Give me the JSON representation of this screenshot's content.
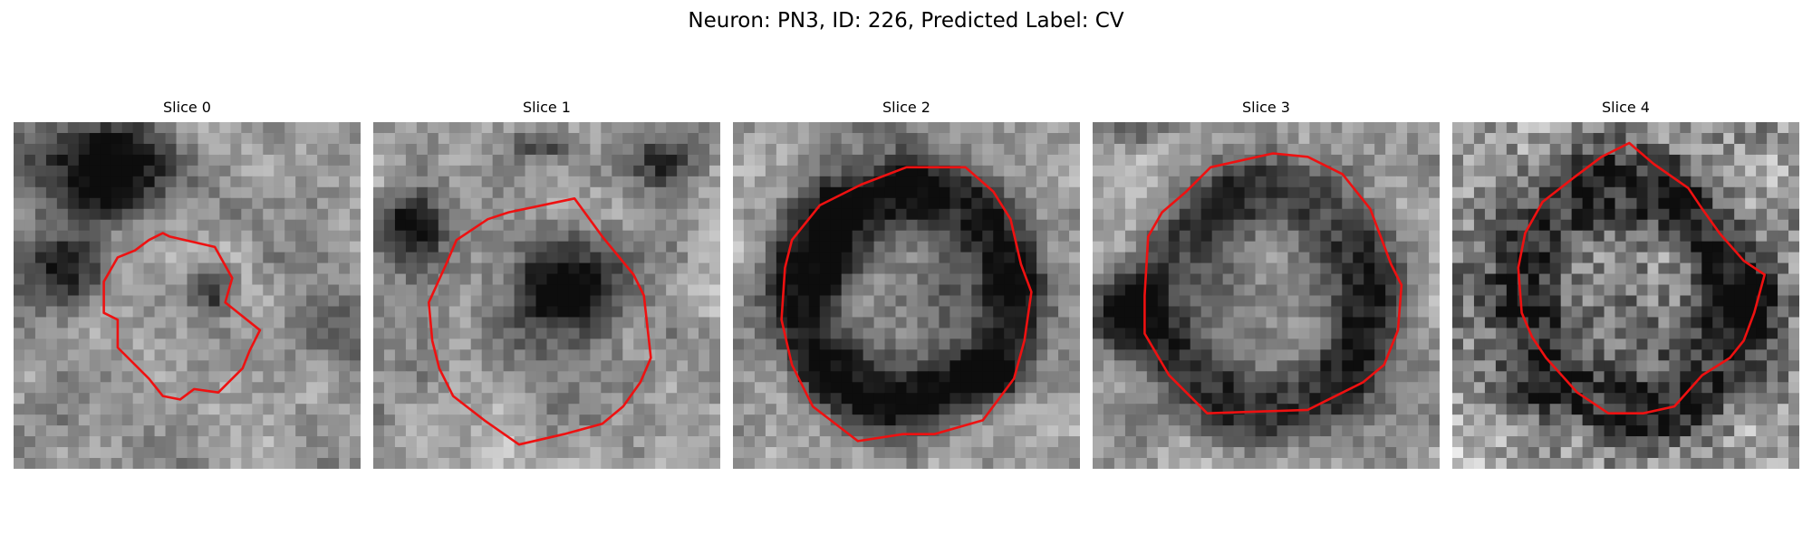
{
  "title": "Neuron: PN3, ID: 226, Predicted Label: CV",
  "slices": [
    {
      "label": "Slice 0",
      "seed": 11,
      "dark": [
        [
          0.25,
          0.13,
          0.22,
          0.14,
          0.7
        ],
        [
          0.15,
          0.42,
          0.12,
          0.1,
          0.55
        ],
        [
          0.58,
          0.48,
          0.06,
          0.08,
          0.5
        ],
        [
          0.9,
          0.55,
          0.12,
          0.15,
          0.3
        ]
      ],
      "outline": [
        [
          0.45,
          0.33
        ],
        [
          0.58,
          0.36
        ],
        [
          0.63,
          0.45
        ],
        [
          0.61,
          0.52
        ],
        [
          0.71,
          0.6
        ],
        [
          0.68,
          0.66
        ],
        [
          0.66,
          0.71
        ],
        [
          0.59,
          0.78
        ],
        [
          0.52,
          0.77
        ],
        [
          0.48,
          0.8
        ],
        [
          0.43,
          0.79
        ],
        [
          0.39,
          0.74
        ],
        [
          0.3,
          0.65
        ],
        [
          0.3,
          0.57
        ],
        [
          0.26,
          0.55
        ],
        [
          0.26,
          0.46
        ],
        [
          0.3,
          0.39
        ],
        [
          0.35,
          0.37
        ],
        [
          0.39,
          0.34
        ],
        [
          0.43,
          0.32
        ]
      ]
    },
    {
      "label": "Slice 1",
      "seed": 23,
      "dark": [
        [
          0.55,
          0.48,
          0.19,
          0.17,
          0.65
        ],
        [
          0.1,
          0.3,
          0.1,
          0.1,
          0.5
        ],
        [
          0.85,
          0.1,
          0.1,
          0.09,
          0.4
        ],
        [
          0.5,
          0.05,
          0.1,
          0.05,
          0.4
        ]
      ],
      "outline": [
        [
          0.39,
          0.26
        ],
        [
          0.58,
          0.22
        ],
        [
          0.66,
          0.33
        ],
        [
          0.75,
          0.44
        ],
        [
          0.78,
          0.5
        ],
        [
          0.8,
          0.68
        ],
        [
          0.77,
          0.75
        ],
        [
          0.72,
          0.82
        ],
        [
          0.66,
          0.87
        ],
        [
          0.55,
          0.9
        ],
        [
          0.42,
          0.93
        ],
        [
          0.32,
          0.86
        ],
        [
          0.23,
          0.79
        ],
        [
          0.19,
          0.71
        ],
        [
          0.17,
          0.63
        ],
        [
          0.16,
          0.52
        ],
        [
          0.21,
          0.41
        ],
        [
          0.24,
          0.34
        ],
        [
          0.33,
          0.28
        ]
      ]
    },
    {
      "label": "Slice 2",
      "seed": 37,
      "dark": [
        [
          0.5,
          0.5,
          0.33,
          0.32,
          0.6
        ],
        [
          0.28,
          0.38,
          0.06,
          0.1,
          0.5
        ],
        [
          0.75,
          0.73,
          0.06,
          0.05,
          0.5
        ]
      ],
      "ring": true,
      "outline": [
        [
          0.37,
          0.18
        ],
        [
          0.5,
          0.13
        ],
        [
          0.67,
          0.13
        ],
        [
          0.75,
          0.2
        ],
        [
          0.8,
          0.28
        ],
        [
          0.83,
          0.41
        ],
        [
          0.86,
          0.49
        ],
        [
          0.84,
          0.63
        ],
        [
          0.81,
          0.74
        ],
        [
          0.72,
          0.86
        ],
        [
          0.58,
          0.9
        ],
        [
          0.49,
          0.9
        ],
        [
          0.36,
          0.92
        ],
        [
          0.23,
          0.82
        ],
        [
          0.17,
          0.7
        ],
        [
          0.14,
          0.57
        ],
        [
          0.15,
          0.42
        ],
        [
          0.17,
          0.34
        ],
        [
          0.25,
          0.24
        ]
      ]
    },
    {
      "label": "Slice 3",
      "seed": 51,
      "dark": [
        [
          0.5,
          0.52,
          0.32,
          0.34,
          0.45
        ],
        [
          0.07,
          0.55,
          0.08,
          0.1,
          0.6
        ],
        [
          0.12,
          0.0,
          0.1,
          0.05,
          0.4
        ]
      ],
      "ring": true,
      "outline": [
        [
          0.34,
          0.13
        ],
        [
          0.52,
          0.09
        ],
        [
          0.62,
          0.1
        ],
        [
          0.72,
          0.15
        ],
        [
          0.8,
          0.25
        ],
        [
          0.86,
          0.41
        ],
        [
          0.89,
          0.47
        ],
        [
          0.88,
          0.6
        ],
        [
          0.84,
          0.7
        ],
        [
          0.78,
          0.75
        ],
        [
          0.68,
          0.8
        ],
        [
          0.62,
          0.83
        ],
        [
          0.33,
          0.84
        ],
        [
          0.22,
          0.73
        ],
        [
          0.15,
          0.61
        ],
        [
          0.15,
          0.5
        ],
        [
          0.16,
          0.33
        ],
        [
          0.2,
          0.26
        ],
        [
          0.27,
          0.2
        ]
      ]
    },
    {
      "label": "Slice 4",
      "seed": 67,
      "dark": [
        [
          0.5,
          0.5,
          0.33,
          0.35,
          0.45
        ],
        [
          0.9,
          0.55,
          0.12,
          0.12,
          0.35
        ]
      ],
      "ring": true,
      "noisy": true,
      "outline": [
        [
          0.43,
          0.1
        ],
        [
          0.51,
          0.06
        ],
        [
          0.58,
          0.12
        ],
        [
          0.68,
          0.19
        ],
        [
          0.72,
          0.25
        ],
        [
          0.77,
          0.32
        ],
        [
          0.84,
          0.4
        ],
        [
          0.9,
          0.44
        ],
        [
          0.87,
          0.55
        ],
        [
          0.84,
          0.63
        ],
        [
          0.8,
          0.68
        ],
        [
          0.72,
          0.73
        ],
        [
          0.64,
          0.82
        ],
        [
          0.55,
          0.84
        ],
        [
          0.45,
          0.84
        ],
        [
          0.36,
          0.78
        ],
        [
          0.27,
          0.68
        ],
        [
          0.23,
          0.62
        ],
        [
          0.2,
          0.55
        ],
        [
          0.19,
          0.42
        ],
        [
          0.21,
          0.32
        ],
        [
          0.26,
          0.23
        ],
        [
          0.35,
          0.16
        ]
      ]
    }
  ]
}
